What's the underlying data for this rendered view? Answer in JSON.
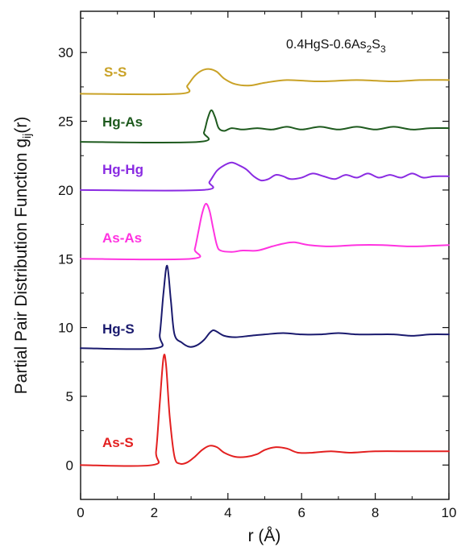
{
  "chart_data": {
    "type": "line",
    "title": "",
    "xlabel": "r (Å)",
    "ylabel": "Partial Pair Distribution Function g",
    "ylabel_sub": "ij",
    "ylabel_tail": "(r)",
    "annotation": {
      "main": "0.4HgS-0.6As",
      "sub1": "2",
      "mid": "S",
      "sub2": "3"
    },
    "xlim": [
      0,
      10
    ],
    "ylim": [
      -2.5,
      33
    ],
    "xticks": [
      0,
      2,
      4,
      6,
      8,
      10
    ],
    "yticks": [
      0,
      5,
      10,
      15,
      20,
      25,
      30
    ],
    "grid": false,
    "legend": "none",
    "series": [
      {
        "name": "S-S",
        "color": "#c9a227",
        "points": [
          [
            0,
            27
          ],
          [
            2.7,
            27
          ],
          [
            2.9,
            27.6
          ],
          [
            3.1,
            28.3
          ],
          [
            3.3,
            28.7
          ],
          [
            3.5,
            28.8
          ],
          [
            3.7,
            28.6
          ],
          [
            3.9,
            28.1
          ],
          [
            4.2,
            27.7
          ],
          [
            4.6,
            27.6
          ],
          [
            5.0,
            27.8
          ],
          [
            5.6,
            28.0
          ],
          [
            6.5,
            27.9
          ],
          [
            7.5,
            28.0
          ],
          [
            8.5,
            27.9
          ],
          [
            9.2,
            28.0
          ],
          [
            10,
            28.0
          ]
        ]
      },
      {
        "name": "Hg-As",
        "color": "#1e5a1e",
        "points": [
          [
            0,
            23.5
          ],
          [
            3.2,
            23.5
          ],
          [
            3.35,
            24.2
          ],
          [
            3.45,
            25.2
          ],
          [
            3.55,
            25.8
          ],
          [
            3.65,
            25.3
          ],
          [
            3.75,
            24.5
          ],
          [
            3.9,
            24.3
          ],
          [
            4.1,
            24.5
          ],
          [
            4.4,
            24.4
          ],
          [
            4.8,
            24.5
          ],
          [
            5.2,
            24.4
          ],
          [
            5.6,
            24.6
          ],
          [
            6.0,
            24.4
          ],
          [
            6.5,
            24.6
          ],
          [
            7.0,
            24.4
          ],
          [
            7.5,
            24.6
          ],
          [
            8.0,
            24.4
          ],
          [
            8.5,
            24.6
          ],
          [
            9.0,
            24.4
          ],
          [
            9.5,
            24.5
          ],
          [
            10,
            24.5
          ]
        ]
      },
      {
        "name": "Hg-Hg",
        "color": "#8a2be2",
        "points": [
          [
            0,
            20
          ],
          [
            3.3,
            20
          ],
          [
            3.5,
            20.6
          ],
          [
            3.7,
            21.4
          ],
          [
            3.9,
            21.8
          ],
          [
            4.1,
            22.0
          ],
          [
            4.3,
            21.8
          ],
          [
            4.5,
            21.5
          ],
          [
            4.7,
            21.0
          ],
          [
            4.9,
            20.7
          ],
          [
            5.1,
            20.8
          ],
          [
            5.3,
            21.1
          ],
          [
            5.5,
            21.0
          ],
          [
            5.7,
            20.8
          ],
          [
            6.0,
            20.9
          ],
          [
            6.3,
            21.2
          ],
          [
            6.6,
            21.0
          ],
          [
            6.9,
            20.8
          ],
          [
            7.2,
            21.1
          ],
          [
            7.5,
            20.9
          ],
          [
            7.8,
            21.2
          ],
          [
            8.1,
            20.9
          ],
          [
            8.4,
            21.1
          ],
          [
            8.7,
            20.9
          ],
          [
            9.0,
            21.2
          ],
          [
            9.3,
            20.9
          ],
          [
            9.6,
            21.0
          ],
          [
            10,
            21.0
          ]
        ]
      },
      {
        "name": "As-As",
        "color": "#ff33e0",
        "points": [
          [
            0,
            15
          ],
          [
            3.0,
            15
          ],
          [
            3.1,
            15.7
          ],
          [
            3.2,
            17.0
          ],
          [
            3.3,
            18.3
          ],
          [
            3.4,
            19.0
          ],
          [
            3.5,
            18.5
          ],
          [
            3.6,
            17.2
          ],
          [
            3.7,
            16.0
          ],
          [
            3.8,
            15.6
          ],
          [
            4.1,
            15.5
          ],
          [
            4.4,
            15.6
          ],
          [
            4.8,
            15.6
          ],
          [
            5.2,
            15.9
          ],
          [
            5.5,
            16.1
          ],
          [
            5.8,
            16.2
          ],
          [
            6.2,
            16.0
          ],
          [
            6.8,
            15.9
          ],
          [
            7.5,
            16.0
          ],
          [
            8.2,
            16.0
          ],
          [
            9.0,
            15.9
          ],
          [
            10,
            16.0
          ]
        ]
      },
      {
        "name": "Hg-S",
        "color": "#1a1a6e",
        "points": [
          [
            0,
            8.5
          ],
          [
            2.05,
            8.5
          ],
          [
            2.15,
            9.5
          ],
          [
            2.25,
            12.5
          ],
          [
            2.35,
            14.5
          ],
          [
            2.45,
            12.0
          ],
          [
            2.55,
            9.5
          ],
          [
            2.75,
            8.9
          ],
          [
            2.95,
            8.6
          ],
          [
            3.15,
            8.7
          ],
          [
            3.35,
            9.1
          ],
          [
            3.5,
            9.6
          ],
          [
            3.6,
            9.8
          ],
          [
            3.7,
            9.7
          ],
          [
            3.9,
            9.4
          ],
          [
            4.2,
            9.3
          ],
          [
            4.6,
            9.4
          ],
          [
            5.0,
            9.5
          ],
          [
            5.5,
            9.6
          ],
          [
            6.0,
            9.5
          ],
          [
            6.5,
            9.5
          ],
          [
            7.0,
            9.6
          ],
          [
            7.5,
            9.5
          ],
          [
            8.0,
            9.5
          ],
          [
            8.5,
            9.5
          ],
          [
            9.0,
            9.4
          ],
          [
            9.5,
            9.5
          ],
          [
            10,
            9.5
          ]
        ]
      },
      {
        "name": "As-S",
        "color": "#e32020",
        "points": [
          [
            0,
            0
          ],
          [
            1.95,
            0
          ],
          [
            2.05,
            1.0
          ],
          [
            2.15,
            4.5
          ],
          [
            2.25,
            7.8
          ],
          [
            2.32,
            7.3
          ],
          [
            2.42,
            3.5
          ],
          [
            2.55,
            0.6
          ],
          [
            2.7,
            0.1
          ],
          [
            2.9,
            0.2
          ],
          [
            3.1,
            0.6
          ],
          [
            3.3,
            1.1
          ],
          [
            3.5,
            1.4
          ],
          [
            3.7,
            1.3
          ],
          [
            3.9,
            0.9
          ],
          [
            4.2,
            0.6
          ],
          [
            4.5,
            0.6
          ],
          [
            4.8,
            0.8
          ],
          [
            5.0,
            1.1
          ],
          [
            5.3,
            1.3
          ],
          [
            5.6,
            1.2
          ],
          [
            5.9,
            0.9
          ],
          [
            6.3,
            0.9
          ],
          [
            6.8,
            1.0
          ],
          [
            7.3,
            0.9
          ],
          [
            8.0,
            1.0
          ],
          [
            9.0,
            1.0
          ],
          [
            10,
            1.0
          ]
        ]
      }
    ]
  }
}
